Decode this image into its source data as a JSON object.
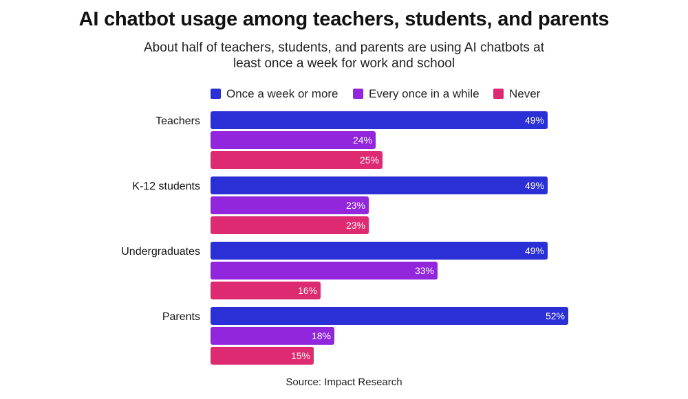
{
  "chart_data": {
    "type": "bar",
    "orientation": "horizontal",
    "title": "AI chatbot usage among teachers, students, and parents",
    "subtitle": "About half of teachers, students, and parents are using AI chatbots at least once a week for work and school",
    "categories": [
      "Teachers",
      "K-12 students",
      "Undergraduates",
      "Parents"
    ],
    "series": [
      {
        "name": "Once a week or more",
        "color": "#2b2fd6",
        "values": [
          49,
          49,
          49,
          52
        ]
      },
      {
        "name": "Every once in a while",
        "color": "#9126dc",
        "values": [
          24,
          23,
          33,
          18
        ]
      },
      {
        "name": "Never",
        "color": "#dd2a70",
        "values": [
          25,
          23,
          16,
          15
        ]
      }
    ],
    "value_suffix": "%",
    "xlim": [
      0,
      100
    ],
    "grid": false,
    "legend_position": "top",
    "source": "Source: Impact Research"
  }
}
